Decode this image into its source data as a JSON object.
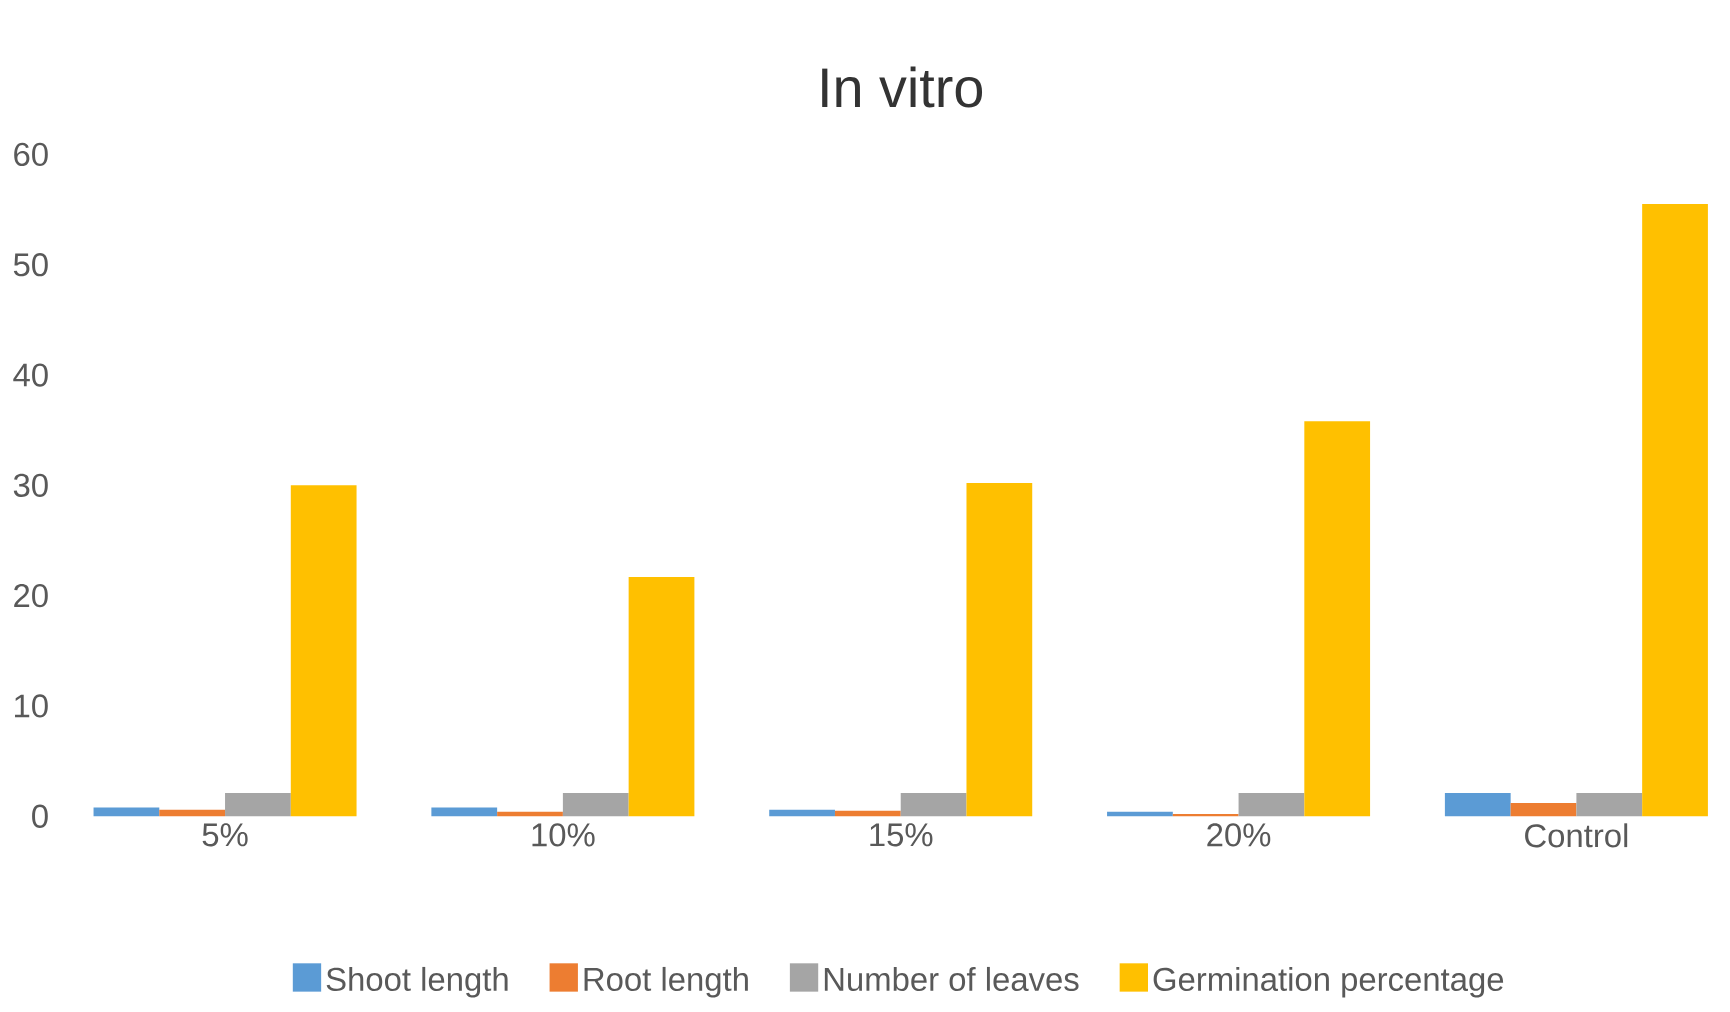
{
  "chart_data": {
    "type": "bar",
    "title": "In vitro",
    "categories": [
      "5%",
      "10%",
      "15%",
      "20%",
      "Control"
    ],
    "series": [
      {
        "name": "Shoot length",
        "color": "#5b9bd5",
        "values": [
          0.8,
          0.8,
          0.6,
          0.4,
          2.1
        ]
      },
      {
        "name": "Root length",
        "color": "#ed7d31",
        "values": [
          0.6,
          0.4,
          0.5,
          0.2,
          1.2
        ]
      },
      {
        "name": "Number of leaves",
        "color": "#a5a5a5",
        "values": [
          2.1,
          2.1,
          2.1,
          2.1,
          2.1
        ]
      },
      {
        "name": "Germination percentage",
        "color": "#ffc000",
        "values": [
          30.0,
          21.7,
          30.2,
          35.8,
          55.5
        ]
      }
    ],
    "ylim": [
      0,
      60
    ],
    "yticks": [
      0,
      10,
      20,
      30,
      40,
      50,
      60
    ],
    "grid": false,
    "legend": "bottom"
  }
}
